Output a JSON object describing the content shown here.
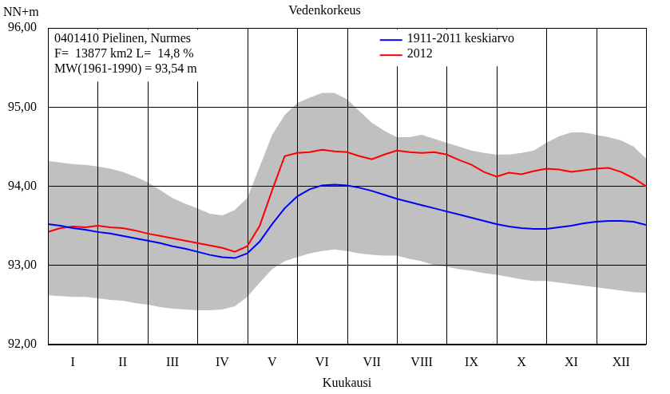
{
  "chart_data": {
    "type": "line",
    "title": "Vedenkorkeus",
    "y_label": "NN+m",
    "x_label": "Kuukausi",
    "annotations": [
      "0401410 Pielinen, Nurmes",
      "F=  13877 km2 L=  14,8 %",
      "MW(1961-1990) = 93,54 m"
    ],
    "x": [
      0,
      0.25,
      0.5,
      0.75,
      1,
      1.25,
      1.5,
      1.75,
      2,
      2.25,
      2.5,
      2.75,
      3,
      3.25,
      3.5,
      3.75,
      4,
      4.25,
      4.5,
      4.75,
      5,
      5.25,
      5.5,
      5.75,
      6,
      6.25,
      6.5,
      6.75,
      7,
      7.25,
      7.5,
      7.75,
      8,
      8.25,
      8.5,
      8.75,
      9,
      9.25,
      9.5,
      9.75,
      10,
      10.25,
      10.5,
      10.75,
      11,
      11.25,
      11.5,
      11.75,
      12
    ],
    "series": [
      {
        "name": "1911-2011 keskiarvo",
        "color": "#0000ff",
        "values": [
          93.52,
          93.5,
          93.47,
          93.45,
          93.42,
          93.4,
          93.37,
          93.34,
          93.31,
          93.28,
          93.24,
          93.21,
          93.17,
          93.13,
          93.1,
          93.09,
          93.15,
          93.3,
          93.52,
          93.72,
          93.87,
          93.96,
          94.01,
          94.02,
          94.01,
          93.98,
          93.94,
          93.89,
          93.84,
          93.8,
          93.76,
          93.72,
          93.68,
          93.64,
          93.6,
          93.56,
          93.52,
          93.49,
          93.47,
          93.46,
          93.46,
          93.48,
          93.5,
          93.53,
          93.55,
          93.56,
          93.56,
          93.55,
          93.51
        ]
      },
      {
        "name": "2012",
        "color": "#ff0000",
        "values": [
          93.42,
          93.47,
          93.49,
          93.48,
          93.5,
          93.48,
          93.47,
          93.44,
          93.4,
          93.37,
          93.34,
          93.31,
          93.28,
          93.25,
          93.22,
          93.17,
          93.24,
          93.5,
          93.95,
          94.38,
          94.42,
          94.43,
          94.46,
          94.44,
          94.43,
          94.38,
          94.34,
          94.4,
          94.45,
          94.43,
          94.42,
          94.43,
          94.4,
          94.33,
          94.27,
          94.18,
          94.12,
          94.17,
          94.15,
          94.19,
          94.22,
          94.21,
          94.18,
          94.2,
          94.22,
          94.23,
          94.18,
          94.1,
          94.0
        ]
      }
    ],
    "band": {
      "color": "#c0c0c0",
      "lower": [
        92.62,
        92.61,
        92.6,
        92.6,
        92.58,
        92.56,
        92.55,
        92.52,
        92.5,
        92.47,
        92.45,
        92.44,
        92.43,
        92.43,
        92.44,
        92.48,
        92.6,
        92.78,
        92.95,
        93.05,
        93.1,
        93.15,
        93.18,
        93.2,
        93.18,
        93.15,
        93.13,
        93.12,
        93.12,
        93.08,
        93.05,
        93.0,
        92.98,
        92.95,
        92.93,
        92.9,
        92.88,
        92.85,
        92.82,
        92.8,
        92.8,
        92.78,
        92.76,
        92.74,
        92.72,
        92.7,
        92.68,
        92.66,
        92.65
      ],
      "upper": [
        94.32,
        94.3,
        94.28,
        94.27,
        94.25,
        94.22,
        94.18,
        94.12,
        94.05,
        93.95,
        93.85,
        93.78,
        93.72,
        93.65,
        93.63,
        93.7,
        93.85,
        94.25,
        94.65,
        94.9,
        95.05,
        95.12,
        95.18,
        95.18,
        95.1,
        94.95,
        94.8,
        94.7,
        94.62,
        94.62,
        94.65,
        94.6,
        94.55,
        94.5,
        94.45,
        94.42,
        94.4,
        94.4,
        94.42,
        94.45,
        94.55,
        94.63,
        94.68,
        94.68,
        94.65,
        94.62,
        94.58,
        94.5,
        94.35
      ]
    },
    "xlim": [
      0,
      12
    ],
    "xticks": [
      {
        "value": 0.5,
        "label": "I"
      },
      {
        "value": 1.5,
        "label": "II"
      },
      {
        "value": 2.5,
        "label": "III"
      },
      {
        "value": 3.5,
        "label": "IV"
      },
      {
        "value": 4.5,
        "label": "V"
      },
      {
        "value": 5.5,
        "label": "VI"
      },
      {
        "value": 6.5,
        "label": "VII"
      },
      {
        "value": 7.5,
        "label": "VIII"
      },
      {
        "value": 8.5,
        "label": "IX"
      },
      {
        "value": 9.5,
        "label": "X"
      },
      {
        "value": 10.5,
        "label": "XI"
      },
      {
        "value": 11.5,
        "label": "XII"
      }
    ],
    "ylim": [
      92,
      96
    ],
    "yticks": [
      {
        "value": 92,
        "label": "92,00"
      },
      {
        "value": 93,
        "label": "93,00"
      },
      {
        "value": 94,
        "label": "94,00"
      },
      {
        "value": 95,
        "label": "95,00"
      },
      {
        "value": 96,
        "label": "96,00"
      }
    ],
    "grid": true,
    "legend": "upper-right"
  }
}
